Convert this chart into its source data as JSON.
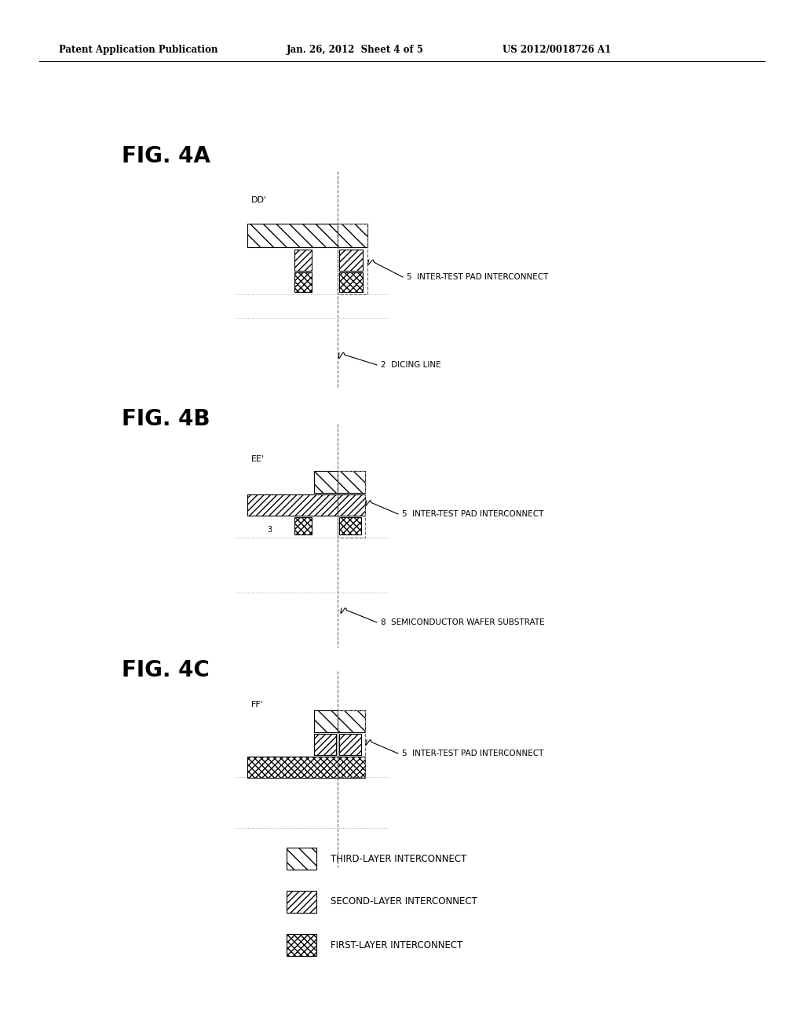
{
  "title_header": "Patent Application Publication",
  "date_header": "Jan. 26, 2012  Sheet 4 of 5",
  "patent_header": "US 2012/0018726 A1",
  "bg_color": "#ffffff",
  "annotations_5": "5  INTER-TEST PAD INTERCONNECT",
  "annotation_2": "2  DICING LINE",
  "annotation_8": "8  SEMICONDUCTOR WAFER SUBSTRATE",
  "legend_labels": [
    "THIRD-LAYER INTERCONNECT",
    "SECOND-LAYER INTERCONNECT",
    "FIRST-LAYER INTERCONNECT"
  ],
  "line_color": "#000000",
  "dashed_color": "#666666",
  "dotted_color": "#999999"
}
